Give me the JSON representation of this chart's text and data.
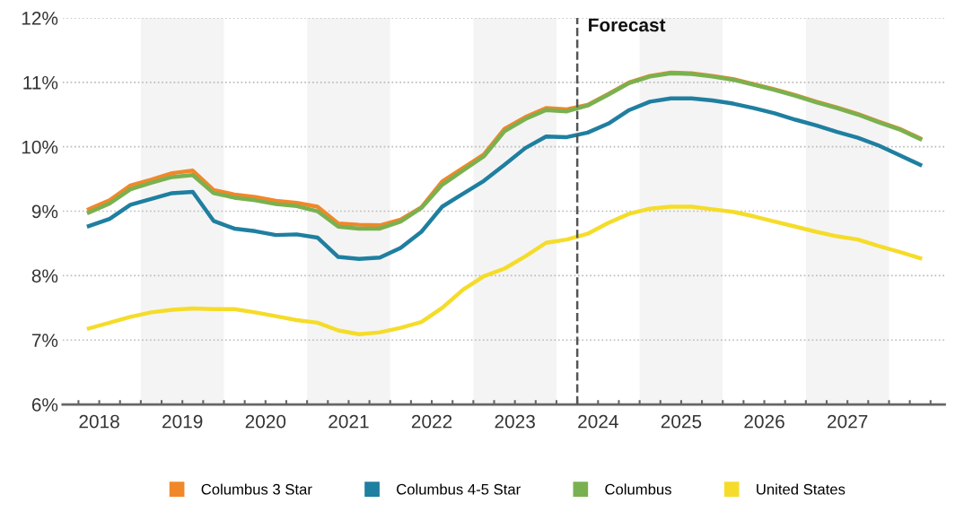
{
  "chart_data": {
    "type": "line",
    "x": [
      2018.375,
      2018.625,
      2018.875,
      2019.125,
      2019.375,
      2019.625,
      2019.875,
      2020.125,
      2020.375,
      2020.625,
      2020.875,
      2021.125,
      2021.375,
      2021.625,
      2021.875,
      2022.125,
      2022.375,
      2022.625,
      2022.875,
      2023.125,
      2023.375,
      2023.625,
      2023.875,
      2024.125,
      2024.375,
      2024.625,
      2024.875,
      2025.125,
      2025.375,
      2025.625,
      2025.875,
      2026.125,
      2026.375,
      2026.625,
      2026.875,
      2027.125,
      2027.375,
      2027.625,
      2027.875,
      2028.125,
      2028.375
    ],
    "series": [
      {
        "name": "Columbus 3 Star",
        "color": "#f0882a",
        "values": [
          9.03,
          9.17,
          9.4,
          9.49,
          9.59,
          9.63,
          9.33,
          9.26,
          9.22,
          9.16,
          9.13,
          9.07,
          8.81,
          8.79,
          8.78,
          8.87,
          9.06,
          9.46,
          9.67,
          9.88,
          10.28,
          10.46,
          10.6,
          10.58,
          10.65,
          10.82,
          11.0,
          11.1,
          11.15,
          11.14,
          11.1,
          11.05,
          10.97,
          10.89,
          10.8,
          10.7,
          10.61,
          10.51,
          10.39,
          10.28,
          10.13
        ]
      },
      {
        "name": "Columbus 4-5 Star",
        "color": "#1f7fa0",
        "values": [
          8.77,
          8.88,
          9.1,
          9.19,
          9.28,
          9.3,
          8.85,
          8.73,
          8.69,
          8.63,
          8.64,
          8.59,
          8.29,
          8.26,
          8.28,
          8.43,
          8.68,
          9.07,
          9.27,
          9.47,
          9.72,
          9.98,
          10.16,
          10.15,
          10.22,
          10.36,
          10.57,
          10.7,
          10.75,
          10.75,
          10.72,
          10.67,
          10.6,
          10.52,
          10.42,
          10.33,
          10.23,
          10.14,
          10.02,
          9.87,
          9.72
        ]
      },
      {
        "name": "Columbus",
        "color": "#7ab150",
        "values": [
          8.98,
          9.12,
          9.34,
          9.44,
          9.53,
          9.56,
          9.28,
          9.21,
          9.17,
          9.11,
          9.08,
          9.0,
          8.76,
          8.73,
          8.73,
          8.84,
          9.05,
          9.41,
          9.63,
          9.85,
          10.24,
          10.43,
          10.57,
          10.55,
          10.64,
          10.81,
          10.99,
          11.09,
          11.14,
          11.13,
          11.09,
          11.04,
          10.96,
          10.88,
          10.79,
          10.69,
          10.6,
          10.5,
          10.38,
          10.27,
          10.12
        ]
      },
      {
        "name": "United States",
        "color": "#f5dc2a",
        "values": [
          7.18,
          7.27,
          7.36,
          7.43,
          7.47,
          7.49,
          7.48,
          7.48,
          7.43,
          7.37,
          7.31,
          7.27,
          7.15,
          7.09,
          7.12,
          7.19,
          7.28,
          7.5,
          7.78,
          7.99,
          8.11,
          8.3,
          8.51,
          8.56,
          8.65,
          8.82,
          8.96,
          9.04,
          9.07,
          9.07,
          9.03,
          8.99,
          8.92,
          8.84,
          8.76,
          8.68,
          8.61,
          8.56,
          8.46,
          8.37,
          8.27
        ]
      }
    ],
    "xlim": [
      2018.06,
      2028.67
    ],
    "xticks": [
      {
        "value": 2018.25,
        "label": null
      },
      {
        "value": 2018.5,
        "label": "2018"
      },
      {
        "value": 2018.75,
        "label": null
      },
      {
        "value": 2019,
        "label": null
      },
      {
        "value": 2019.25,
        "label": null
      },
      {
        "value": 2019.5,
        "label": "2019"
      },
      {
        "value": 2019.75,
        "label": null
      },
      {
        "value": 2020,
        "label": null
      },
      {
        "value": 2020.25,
        "label": null
      },
      {
        "value": 2020.5,
        "label": "2020"
      },
      {
        "value": 2020.75,
        "label": null
      },
      {
        "value": 2021,
        "label": null
      },
      {
        "value": 2021.25,
        "label": null
      },
      {
        "value": 2021.5,
        "label": "2021"
      },
      {
        "value": 2021.75,
        "label": null
      },
      {
        "value": 2022,
        "label": null
      },
      {
        "value": 2022.25,
        "label": null
      },
      {
        "value": 2022.5,
        "label": "2022"
      },
      {
        "value": 2022.75,
        "label": null
      },
      {
        "value": 2023,
        "label": null
      },
      {
        "value": 2023.25,
        "label": null
      },
      {
        "value": 2023.5,
        "label": "2023"
      },
      {
        "value": 2023.75,
        "label": null
      },
      {
        "value": 2024,
        "label": null
      },
      {
        "value": 2024.25,
        "label": null
      },
      {
        "value": 2024.5,
        "label": "2024"
      },
      {
        "value": 2024.75,
        "label": null
      },
      {
        "value": 2025,
        "label": null
      },
      {
        "value": 2025.25,
        "label": null
      },
      {
        "value": 2025.5,
        "label": "2025"
      },
      {
        "value": 2025.75,
        "label": null
      },
      {
        "value": 2026,
        "label": null
      },
      {
        "value": 2026.25,
        "label": null
      },
      {
        "value": 2026.5,
        "label": "2026"
      },
      {
        "value": 2026.75,
        "label": null
      },
      {
        "value": 2027,
        "label": null
      },
      {
        "value": 2027.25,
        "label": null
      },
      {
        "value": 2027.5,
        "label": "2027"
      },
      {
        "value": 2027.75,
        "label": null
      },
      {
        "value": 2028,
        "label": null
      },
      {
        "value": 2028.25,
        "label": null
      },
      {
        "value": 2028.5,
        "label": null
      }
    ],
    "ylim": [
      6,
      12
    ],
    "yticks": [
      {
        "value": 6,
        "label": "6%"
      },
      {
        "value": 7,
        "label": "7%"
      },
      {
        "value": 8,
        "label": "8%"
      },
      {
        "value": 9,
        "label": "9%"
      },
      {
        "value": 10,
        "label": "10%"
      },
      {
        "value": 11,
        "label": "11%"
      },
      {
        "value": 12,
        "label": "12%"
      }
    ],
    "grid": "y",
    "legend": "bottom",
    "marker": "none",
    "line_style": "solid",
    "bands": [
      {
        "axis": "x",
        "from": 2019,
        "to": 2020,
        "color": "#f4f4f4"
      },
      {
        "axis": "x",
        "from": 2021,
        "to": 2022,
        "color": "#f4f4f4"
      },
      {
        "axis": "x",
        "from": 2023,
        "to": 2024,
        "color": "#f4f4f4"
      },
      {
        "axis": "x",
        "from": 2025,
        "to": 2026,
        "color": "#f4f4f4"
      },
      {
        "axis": "x",
        "from": 2027,
        "to": 2028,
        "color": "#f4f4f4"
      }
    ],
    "ref_lines": [
      {
        "axis": "x",
        "value": 2024.25,
        "label": "Forecast",
        "color": "#555555",
        "line_style": "dashed"
      }
    ]
  }
}
